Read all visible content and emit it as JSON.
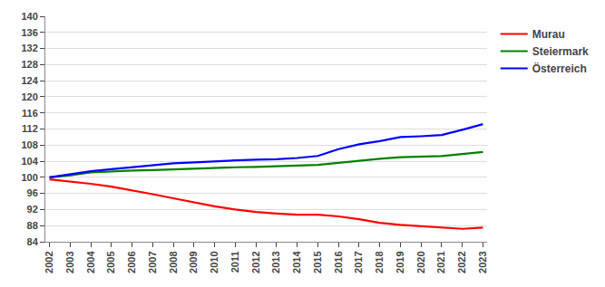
{
  "chart_data": {
    "type": "line",
    "x": [
      2002,
      2003,
      2004,
      2005,
      2006,
      2007,
      2008,
      2009,
      2010,
      2011,
      2012,
      2013,
      2014,
      2015,
      2016,
      2017,
      2018,
      2019,
      2020,
      2021,
      2022,
      2023
    ],
    "series": [
      {
        "name": "Murau",
        "color": "#ff0000",
        "values": [
          99.5,
          99.0,
          98.4,
          97.7,
          96.8,
          95.8,
          94.8,
          93.8,
          92.8,
          92.0,
          91.4,
          91.0,
          90.7,
          90.7,
          90.3,
          89.6,
          88.7,
          88.2,
          87.9,
          87.6,
          87.2,
          87.5
        ]
      },
      {
        "name": "Steiermark",
        "color": "#008000",
        "values": [
          100.0,
          100.5,
          101.2,
          101.5,
          101.7,
          101.8,
          102.0,
          102.1,
          102.3,
          102.5,
          102.6,
          102.7,
          102.9,
          103.1,
          103.6,
          104.2,
          104.6,
          105.0,
          105.1,
          105.3,
          105.8,
          106.3
        ]
      },
      {
        "name": "Österreich",
        "color": "#0000ff",
        "values": [
          100.0,
          100.8,
          101.5,
          102.0,
          102.5,
          103.0,
          103.5,
          103.7,
          104.0,
          104.2,
          104.4,
          104.5,
          104.8,
          105.3,
          107.0,
          108.2,
          109.0,
          110.0,
          110.2,
          110.5,
          111.8,
          113.2
        ]
      }
    ],
    "xlim": [
      2001.8,
      2023.2
    ],
    "xticks": [
      2002,
      2003,
      2004,
      2005,
      2006,
      2007,
      2008,
      2009,
      2010,
      2011,
      2012,
      2013,
      2014,
      2015,
      2016,
      2017,
      2018,
      2019,
      2020,
      2021,
      2022,
      2023
    ],
    "ylim": [
      84,
      140
    ],
    "yticks": [
      84,
      88,
      92,
      96,
      100,
      104,
      108,
      112,
      116,
      120,
      124,
      128,
      132,
      136,
      140
    ],
    "grid": "y",
    "legend": "right"
  }
}
